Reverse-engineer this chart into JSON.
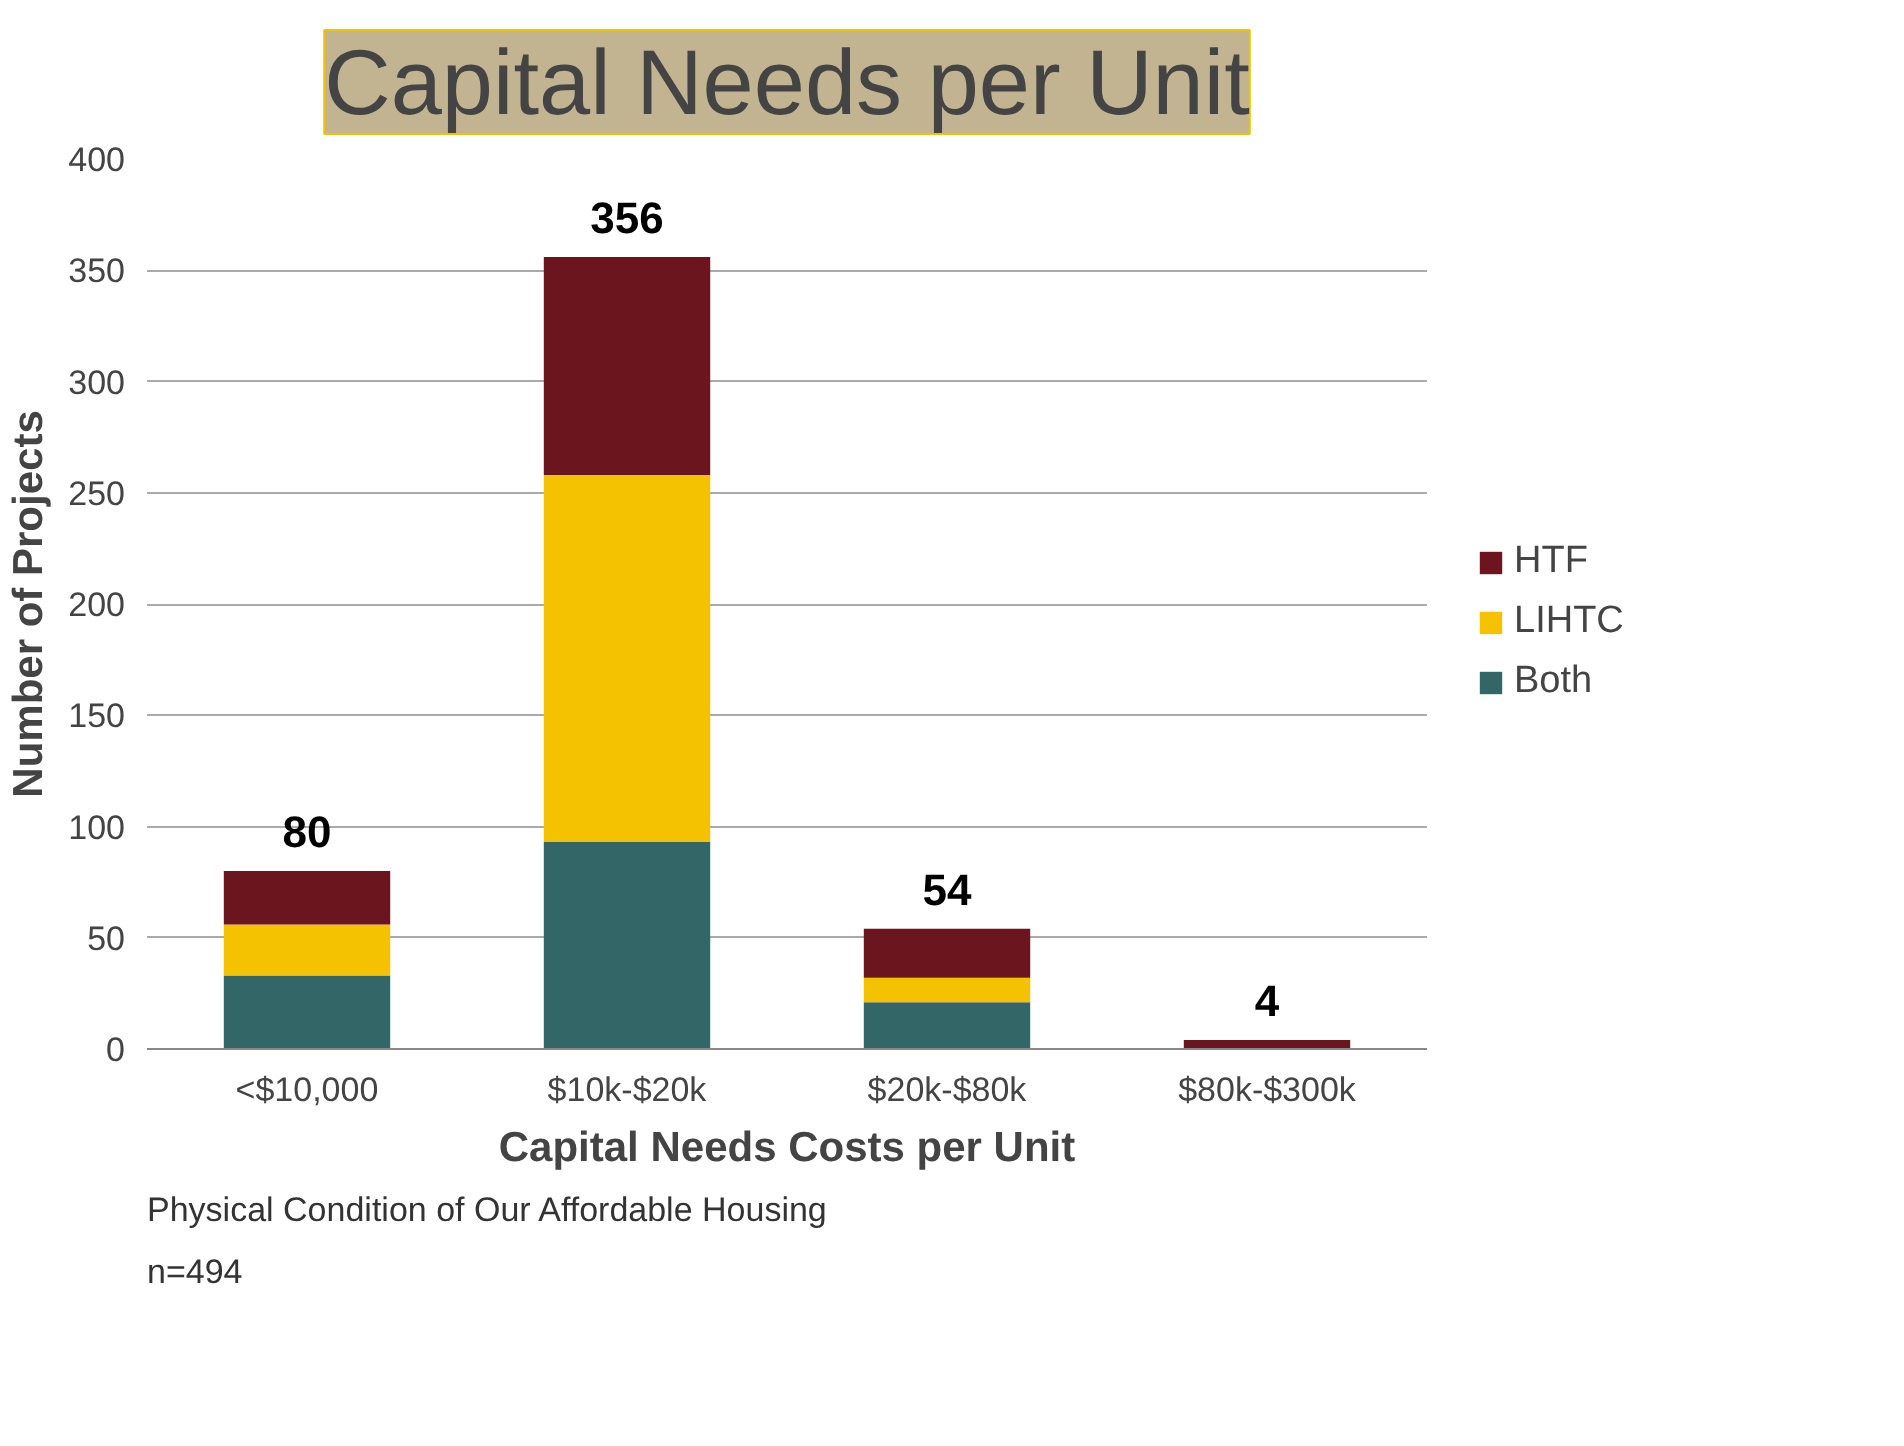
{
  "chart_data": {
    "type": "bar",
    "title": "Capital Needs per Unit",
    "xlabel": "Capital Needs Costs per Unit",
    "ylabel": "Number of Projects",
    "categories": [
      "<$10,000",
      "$10k-$20k",
      "$20k-$80k",
      "$80k-$300k"
    ],
    "stacked": true,
    "series": [
      {
        "name": "Both",
        "color": "#336666",
        "values": [
          33,
          93,
          21,
          0
        ]
      },
      {
        "name": "LIHTC",
        "color": "#f5c200",
        "values": [
          23,
          165,
          11,
          0
        ]
      },
      {
        "name": "HTF",
        "color": "#6b151e",
        "values": [
          24,
          98,
          22,
          4
        ]
      }
    ],
    "totals": [
      "80",
      "356",
      "54",
      "4"
    ],
    "ylim": [
      0,
      400
    ],
    "yticks": [
      0,
      50,
      100,
      150,
      200,
      250,
      300,
      350,
      400
    ],
    "grid": "y",
    "legend": "right",
    "annotations": [
      "n=494",
      "Physical Condition of Our Affordable Housing"
    ]
  }
}
